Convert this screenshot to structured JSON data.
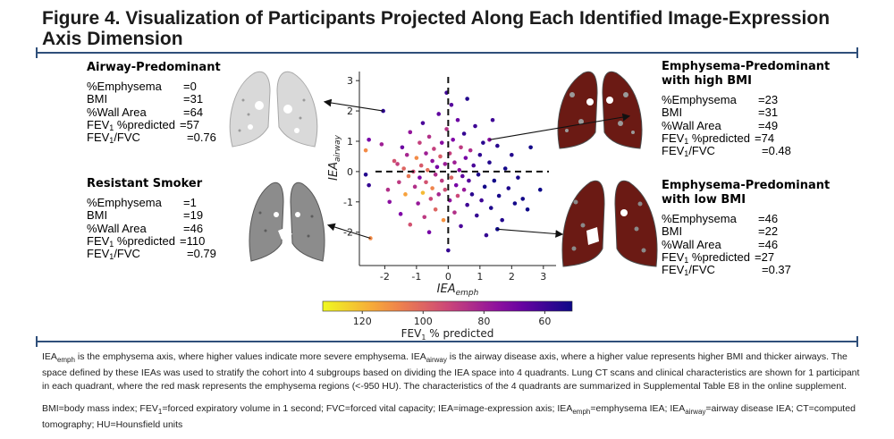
{
  "figure": {
    "title": "Figure 4. Visualization of Participants Projected Along Each Identified Image-Expression Axis Dimension"
  },
  "panels": [
    {
      "id": "airway",
      "title_lines": [
        "Airway-Predominant"
      ],
      "stats": [
        {
          "label": "%Emphysema",
          "value": "=0"
        },
        {
          "label": "BMI",
          "value": "=31"
        },
        {
          "label": "%Wall Area",
          "value": "=64"
        },
        {
          "label": "FEV1 %predicted",
          "value": "=57"
        },
        {
          "label": "FEV1/FVC",
          "value": "=0.76"
        }
      ]
    },
    {
      "id": "resistant",
      "title_lines": [
        "Resistant Smoker"
      ],
      "stats": [
        {
          "label": "%Emphysema",
          "value": "=1"
        },
        {
          "label": "BMI",
          "value": "=19"
        },
        {
          "label": "%Wall Area",
          "value": "=46"
        },
        {
          "label": "FEV1 %predicted",
          "value": "=110"
        },
        {
          "label": "FEV1/FVC",
          "value": "=0.79"
        }
      ]
    },
    {
      "id": "emph_high",
      "title_lines": [
        "Emphysema-Predominant",
        "with high BMI"
      ],
      "stats": [
        {
          "label": "%Emphysema",
          "value": "=23"
        },
        {
          "label": "BMI",
          "value": "=31"
        },
        {
          "label": "%Wall Area",
          "value": "=49"
        },
        {
          "label": "FEV1 %predicted",
          "value": "=74"
        },
        {
          "label": "FEV1/FVC",
          "value": "=0.48"
        }
      ]
    },
    {
      "id": "emph_low",
      "title_lines": [
        "Emphysema-Predominant",
        "with low BMI"
      ],
      "stats": [
        {
          "label": "%Emphysema",
          "value": "=46"
        },
        {
          "label": "BMI",
          "value": "=22"
        },
        {
          "label": "%Wall Area",
          "value": "=46"
        },
        {
          "label": "FEV1 %predicted",
          "value": "=27"
        },
        {
          "label": "FEV1/FVC",
          "value": "=0.37"
        }
      ]
    }
  ],
  "chart_data": {
    "type": "scatter",
    "title": "",
    "xlabel": "IEAemph",
    "ylabel": "IEAairway",
    "xlim": [
      -2.8,
      3.4
    ],
    "ylim": [
      -3.1,
      3.3
    ],
    "xticks": [
      -2,
      -1,
      0,
      1,
      2,
      3
    ],
    "yticks": [
      -2,
      -1,
      0,
      1,
      2,
      3
    ],
    "quadrant_lines": {
      "x": 0,
      "y": 0,
      "style": "dashed"
    },
    "colorbar": {
      "label": "FEV1 % predicted",
      "ticks": [
        120,
        100,
        80,
        60
      ],
      "range": [
        133,
        51
      ],
      "colormap": "plasma_r"
    },
    "points": [
      {
        "x": -2.6,
        "y": 0.7,
        "fev1": 110
      },
      {
        "x": -2.6,
        "y": -0.1,
        "fev1": 55
      },
      {
        "x": -2.5,
        "y": -0.45,
        "fev1": 58
      },
      {
        "x": -2.5,
        "y": 1.05,
        "fev1": 70
      },
      {
        "x": -2.45,
        "y": -2.2,
        "fev1": 110
      },
      {
        "x": -2.1,
        "y": 0.9,
        "fev1": 80
      },
      {
        "x": -1.9,
        "y": -0.6,
        "fev1": 85
      },
      {
        "x": -1.85,
        "y": -1.0,
        "fev1": 75
      },
      {
        "x": -1.7,
        "y": 0.35,
        "fev1": 95
      },
      {
        "x": -1.6,
        "y": 0.25,
        "fev1": 90
      },
      {
        "x": -1.55,
        "y": -0.35,
        "fev1": 88
      },
      {
        "x": -1.5,
        "y": -1.4,
        "fev1": 72
      },
      {
        "x": -1.45,
        "y": 0.8,
        "fev1": 68
      },
      {
        "x": -1.4,
        "y": 0.1,
        "fev1": 100
      },
      {
        "x": -1.35,
        "y": -0.75,
        "fev1": 115
      },
      {
        "x": -1.3,
        "y": 0.55,
        "fev1": 82
      },
      {
        "x": -1.25,
        "y": -0.15,
        "fev1": 105
      },
      {
        "x": -1.2,
        "y": -1.75,
        "fev1": 95
      },
      {
        "x": -1.2,
        "y": 1.3,
        "fev1": 77
      },
      {
        "x": -1.1,
        "y": 0.0,
        "fev1": 93
      },
      {
        "x": -1.05,
        "y": -0.5,
        "fev1": 85
      },
      {
        "x": -1.0,
        "y": 0.45,
        "fev1": 110
      },
      {
        "x": -0.95,
        "y": -1.05,
        "fev1": 78
      },
      {
        "x": -0.9,
        "y": 0.95,
        "fev1": 90
      },
      {
        "x": -0.9,
        "y": -0.2,
        "fev1": 72
      },
      {
        "x": -0.85,
        "y": 0.2,
        "fev1": 97
      },
      {
        "x": -0.8,
        "y": -0.7,
        "fev1": 120
      },
      {
        "x": -0.8,
        "y": 1.6,
        "fev1": 62
      },
      {
        "x": -0.75,
        "y": -1.5,
        "fev1": 88
      },
      {
        "x": -0.7,
        "y": 0.6,
        "fev1": 80
      },
      {
        "x": -0.7,
        "y": -0.35,
        "fev1": 95
      },
      {
        "x": -0.65,
        "y": 0.05,
        "fev1": 103
      },
      {
        "x": -0.6,
        "y": -2.0,
        "fev1": 70
      },
      {
        "x": -0.6,
        "y": 1.15,
        "fev1": 85
      },
      {
        "x": -0.55,
        "y": -0.9,
        "fev1": 92
      },
      {
        "x": -0.5,
        "y": 0.35,
        "fev1": 76
      },
      {
        "x": -0.5,
        "y": -0.55,
        "fev1": 108
      },
      {
        "x": -0.45,
        "y": 0.75,
        "fev1": 90
      },
      {
        "x": -0.4,
        "y": -0.1,
        "fev1": 84
      },
      {
        "x": -0.4,
        "y": -1.25,
        "fev1": 100
      },
      {
        "x": -0.35,
        "y": 0.15,
        "fev1": 70
      },
      {
        "x": -0.3,
        "y": 1.9,
        "fev1": 66
      },
      {
        "x": -0.3,
        "y": -0.75,
        "fev1": 82
      },
      {
        "x": -0.25,
        "y": 0.5,
        "fev1": 98
      },
      {
        "x": -0.2,
        "y": -0.3,
        "fev1": 88
      },
      {
        "x": -0.2,
        "y": 0.95,
        "fev1": 74
      },
      {
        "x": -0.15,
        "y": -1.6,
        "fev1": 112
      },
      {
        "x": -0.1,
        "y": 0.25,
        "fev1": 79
      },
      {
        "x": -0.1,
        "y": -0.6,
        "fev1": 94
      },
      {
        "x": -0.05,
        "y": 2.6,
        "fev1": 60
      },
      {
        "x": -0.05,
        "y": 1.4,
        "fev1": 86
      },
      {
        "x": 0.0,
        "y": -2.6,
        "fev1": 58
      },
      {
        "x": 0.05,
        "y": 0.6,
        "fev1": 90
      },
      {
        "x": 0.05,
        "y": -0.95,
        "fev1": 76
      },
      {
        "x": 0.1,
        "y": 2.2,
        "fev1": 64
      },
      {
        "x": 0.1,
        "y": -0.2,
        "fev1": 100
      },
      {
        "x": 0.15,
        "y": 1.05,
        "fev1": 72
      },
      {
        "x": 0.2,
        "y": -1.35,
        "fev1": 85
      },
      {
        "x": 0.2,
        "y": 0.3,
        "fev1": 80
      },
      {
        "x": 0.25,
        "y": -0.45,
        "fev1": 70
      },
      {
        "x": 0.3,
        "y": 1.7,
        "fev1": 68
      },
      {
        "x": 0.3,
        "y": -0.8,
        "fev1": 92
      },
      {
        "x": 0.35,
        "y": 0.05,
        "fev1": 75
      },
      {
        "x": 0.4,
        "y": 0.8,
        "fev1": 88
      },
      {
        "x": 0.4,
        "y": -1.8,
        "fev1": 62
      },
      {
        "x": 0.45,
        "y": -0.15,
        "fev1": 66
      },
      {
        "x": 0.5,
        "y": 1.25,
        "fev1": 58
      },
      {
        "x": 0.5,
        "y": -0.6,
        "fev1": 78
      },
      {
        "x": 0.55,
        "y": 0.45,
        "fev1": 70
      },
      {
        "x": 0.6,
        "y": -1.1,
        "fev1": 60
      },
      {
        "x": 0.6,
        "y": 2.4,
        "fev1": 55
      },
      {
        "x": 0.65,
        "y": -0.3,
        "fev1": 64
      },
      {
        "x": 0.7,
        "y": 0.7,
        "fev1": 84
      },
      {
        "x": 0.75,
        "y": -0.75,
        "fev1": 56
      },
      {
        "x": 0.8,
        "y": 0.2,
        "fev1": 62
      },
      {
        "x": 0.85,
        "y": 1.5,
        "fev1": 60
      },
      {
        "x": 0.9,
        "y": -1.45,
        "fev1": 58
      },
      {
        "x": 0.95,
        "y": -0.1,
        "fev1": 54
      },
      {
        "x": 1.0,
        "y": 0.55,
        "fev1": 57
      },
      {
        "x": 1.05,
        "y": -0.95,
        "fev1": 60
      },
      {
        "x": 1.1,
        "y": 0.95,
        "fev1": 56
      },
      {
        "x": 1.15,
        "y": -0.5,
        "fev1": 52
      },
      {
        "x": 1.2,
        "y": -2.1,
        "fev1": 58
      },
      {
        "x": 1.3,
        "y": 0.3,
        "fev1": 55
      },
      {
        "x": 1.35,
        "y": -1.2,
        "fev1": 54
      },
      {
        "x": 1.4,
        "y": 1.7,
        "fev1": 60
      },
      {
        "x": 1.45,
        "y": -0.3,
        "fev1": 52
      },
      {
        "x": 1.55,
        "y": 0.85,
        "fev1": 56
      },
      {
        "x": 1.6,
        "y": -0.8,
        "fev1": 53
      },
      {
        "x": 1.7,
        "y": -1.6,
        "fev1": 55
      },
      {
        "x": 1.8,
        "y": 0.1,
        "fev1": 52
      },
      {
        "x": 1.9,
        "y": -0.55,
        "fev1": 54
      },
      {
        "x": 2.0,
        "y": 0.55,
        "fev1": 55
      },
      {
        "x": 2.1,
        "y": -1.05,
        "fev1": 52
      },
      {
        "x": 2.2,
        "y": -0.2,
        "fev1": 53
      },
      {
        "x": 2.35,
        "y": -0.9,
        "fev1": 52
      },
      {
        "x": 2.5,
        "y": -1.25,
        "fev1": 51
      },
      {
        "x": 2.6,
        "y": 0.8,
        "fev1": 52
      },
      {
        "x": 2.9,
        "y": -0.6,
        "fev1": 51
      },
      {
        "x": 1.3,
        "y": 1.05,
        "fev1": 74
      },
      {
        "x": 1.55,
        "y": -1.9,
        "fev1": 27
      },
      {
        "x": -2.05,
        "y": 2.0,
        "fev1": 57
      }
    ],
    "callouts": [
      {
        "panel": "airway",
        "from": [
          -2.05,
          2.0
        ]
      },
      {
        "panel": "resistant",
        "from": [
          -2.45,
          -2.2
        ]
      },
      {
        "panel": "emph_high",
        "from": [
          1.3,
          1.05
        ]
      },
      {
        "panel": "emph_low",
        "from": [
          1.55,
          -1.9
        ]
      }
    ]
  },
  "caption": {
    "p1_parts": {
      "a": "IEA",
      "a_sub": "emph",
      "b": " is the emphysema axis, where higher values indicate more severe emphysema. IEA",
      "b_sub": "airway",
      "c": " is the airway disease axis, where a higher value represents higher BMI and thicker airways. The space defined by these IEAs was used to stratify the cohort into 4 subgroups based on dividing the IEA space into 4 quadrants. Lung CT scans and clinical characteristics are shown for 1 participant in each quadrant, where the red mask represents the emphysema regions (<-950 HU). The characteristics of the 4 quadrants are summarized in Supplemental Table E8 in the online supplement."
    },
    "p2_parts": {
      "a": "BMI=body mass index; FEV",
      "a_sub": "1",
      "b": "=forced expiratory volume in 1 second; FVC=forced vital capacity; IEA=image-expression axis; IEA",
      "b_sub": "emph",
      "c": "=emphysema IEA; IEA",
      "c_sub": "airway",
      "d": "=airway disease IEA; CT=computed tomography; HU=Hounsfield units"
    }
  },
  "colors": {
    "rule": "#2f4f7a",
    "lung_tissue": "#8c8c8c",
    "lung_tissue_dark": "#555555",
    "emphysema_mask": "#7a1a12"
  }
}
